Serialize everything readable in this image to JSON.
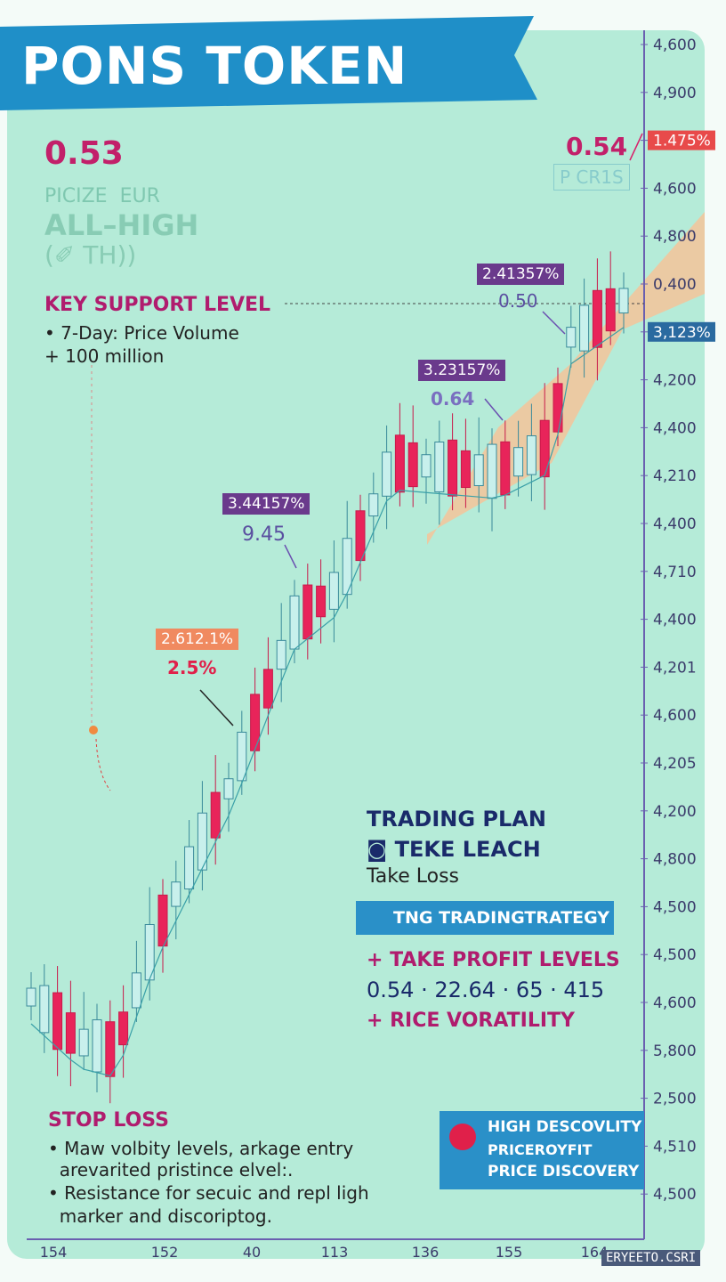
{
  "header": {
    "title": "PONS TOKEN",
    "price": "0.53",
    "sub1": "PICIZE  EUR",
    "sub2": "ALL–HIGH",
    "sub3": "(✐ TH))"
  },
  "support": {
    "title": "KEY SUPPORT LEVEL",
    "lines": [
      "• 7-Day: Price Volume",
      "+ 100 million"
    ]
  },
  "annotations": [
    {
      "box": "2.41357%",
      "value": "0.50"
    },
    {
      "box": "3.23157%",
      "value": "0.64"
    },
    {
      "box": "3.44157%",
      "value": "9.45"
    },
    {
      "box": "2.612.1%",
      "value": "2.5%"
    }
  ],
  "peak": {
    "value": "0.54",
    "label": "P CR1S"
  },
  "right_axis": [
    "4,600",
    "4,900",
    "1.475%",
    "4,600",
    "4,800",
    "0,400",
    "3,123%",
    "4,200",
    "4,400",
    "4,210",
    "4,400",
    "4,710",
    "4,400",
    "4,201",
    "4,600",
    "4,205",
    "4,200",
    "4,800",
    "4,500",
    "4,500",
    "4,600",
    "5,800",
    "2,500",
    "4,510",
    "4,500"
  ],
  "bottom_axis": [
    "154",
    "152",
    "40",
    "113",
    "136",
    "155",
    "164"
  ],
  "plan": {
    "title": "TRADING PLAN",
    "line1": "TEKE LEACH",
    "line2": "Take Loss",
    "button": "TNG TRADINGTRATEGY",
    "profit_title": "+ TAKE PROFIT LEVELS",
    "levels": "0.54 · 22.64 · 65 · 415",
    "volatility": "+ RICE VORATILITY"
  },
  "stop": {
    "title": "STOP LOSS",
    "lines": [
      "• Maw volbity levels, arkage entry",
      "  arevarited pristince elvel:.",
      "• Resistance for secuic and repl ligh",
      "  marker and discoriptog."
    ]
  },
  "badge": {
    "lines": [
      "HIGH DESCOVLITY",
      "PRICEROYFIT",
      "PRICE DISCOVERY"
    ]
  },
  "footer": "ERYEETO.CSRI"
}
